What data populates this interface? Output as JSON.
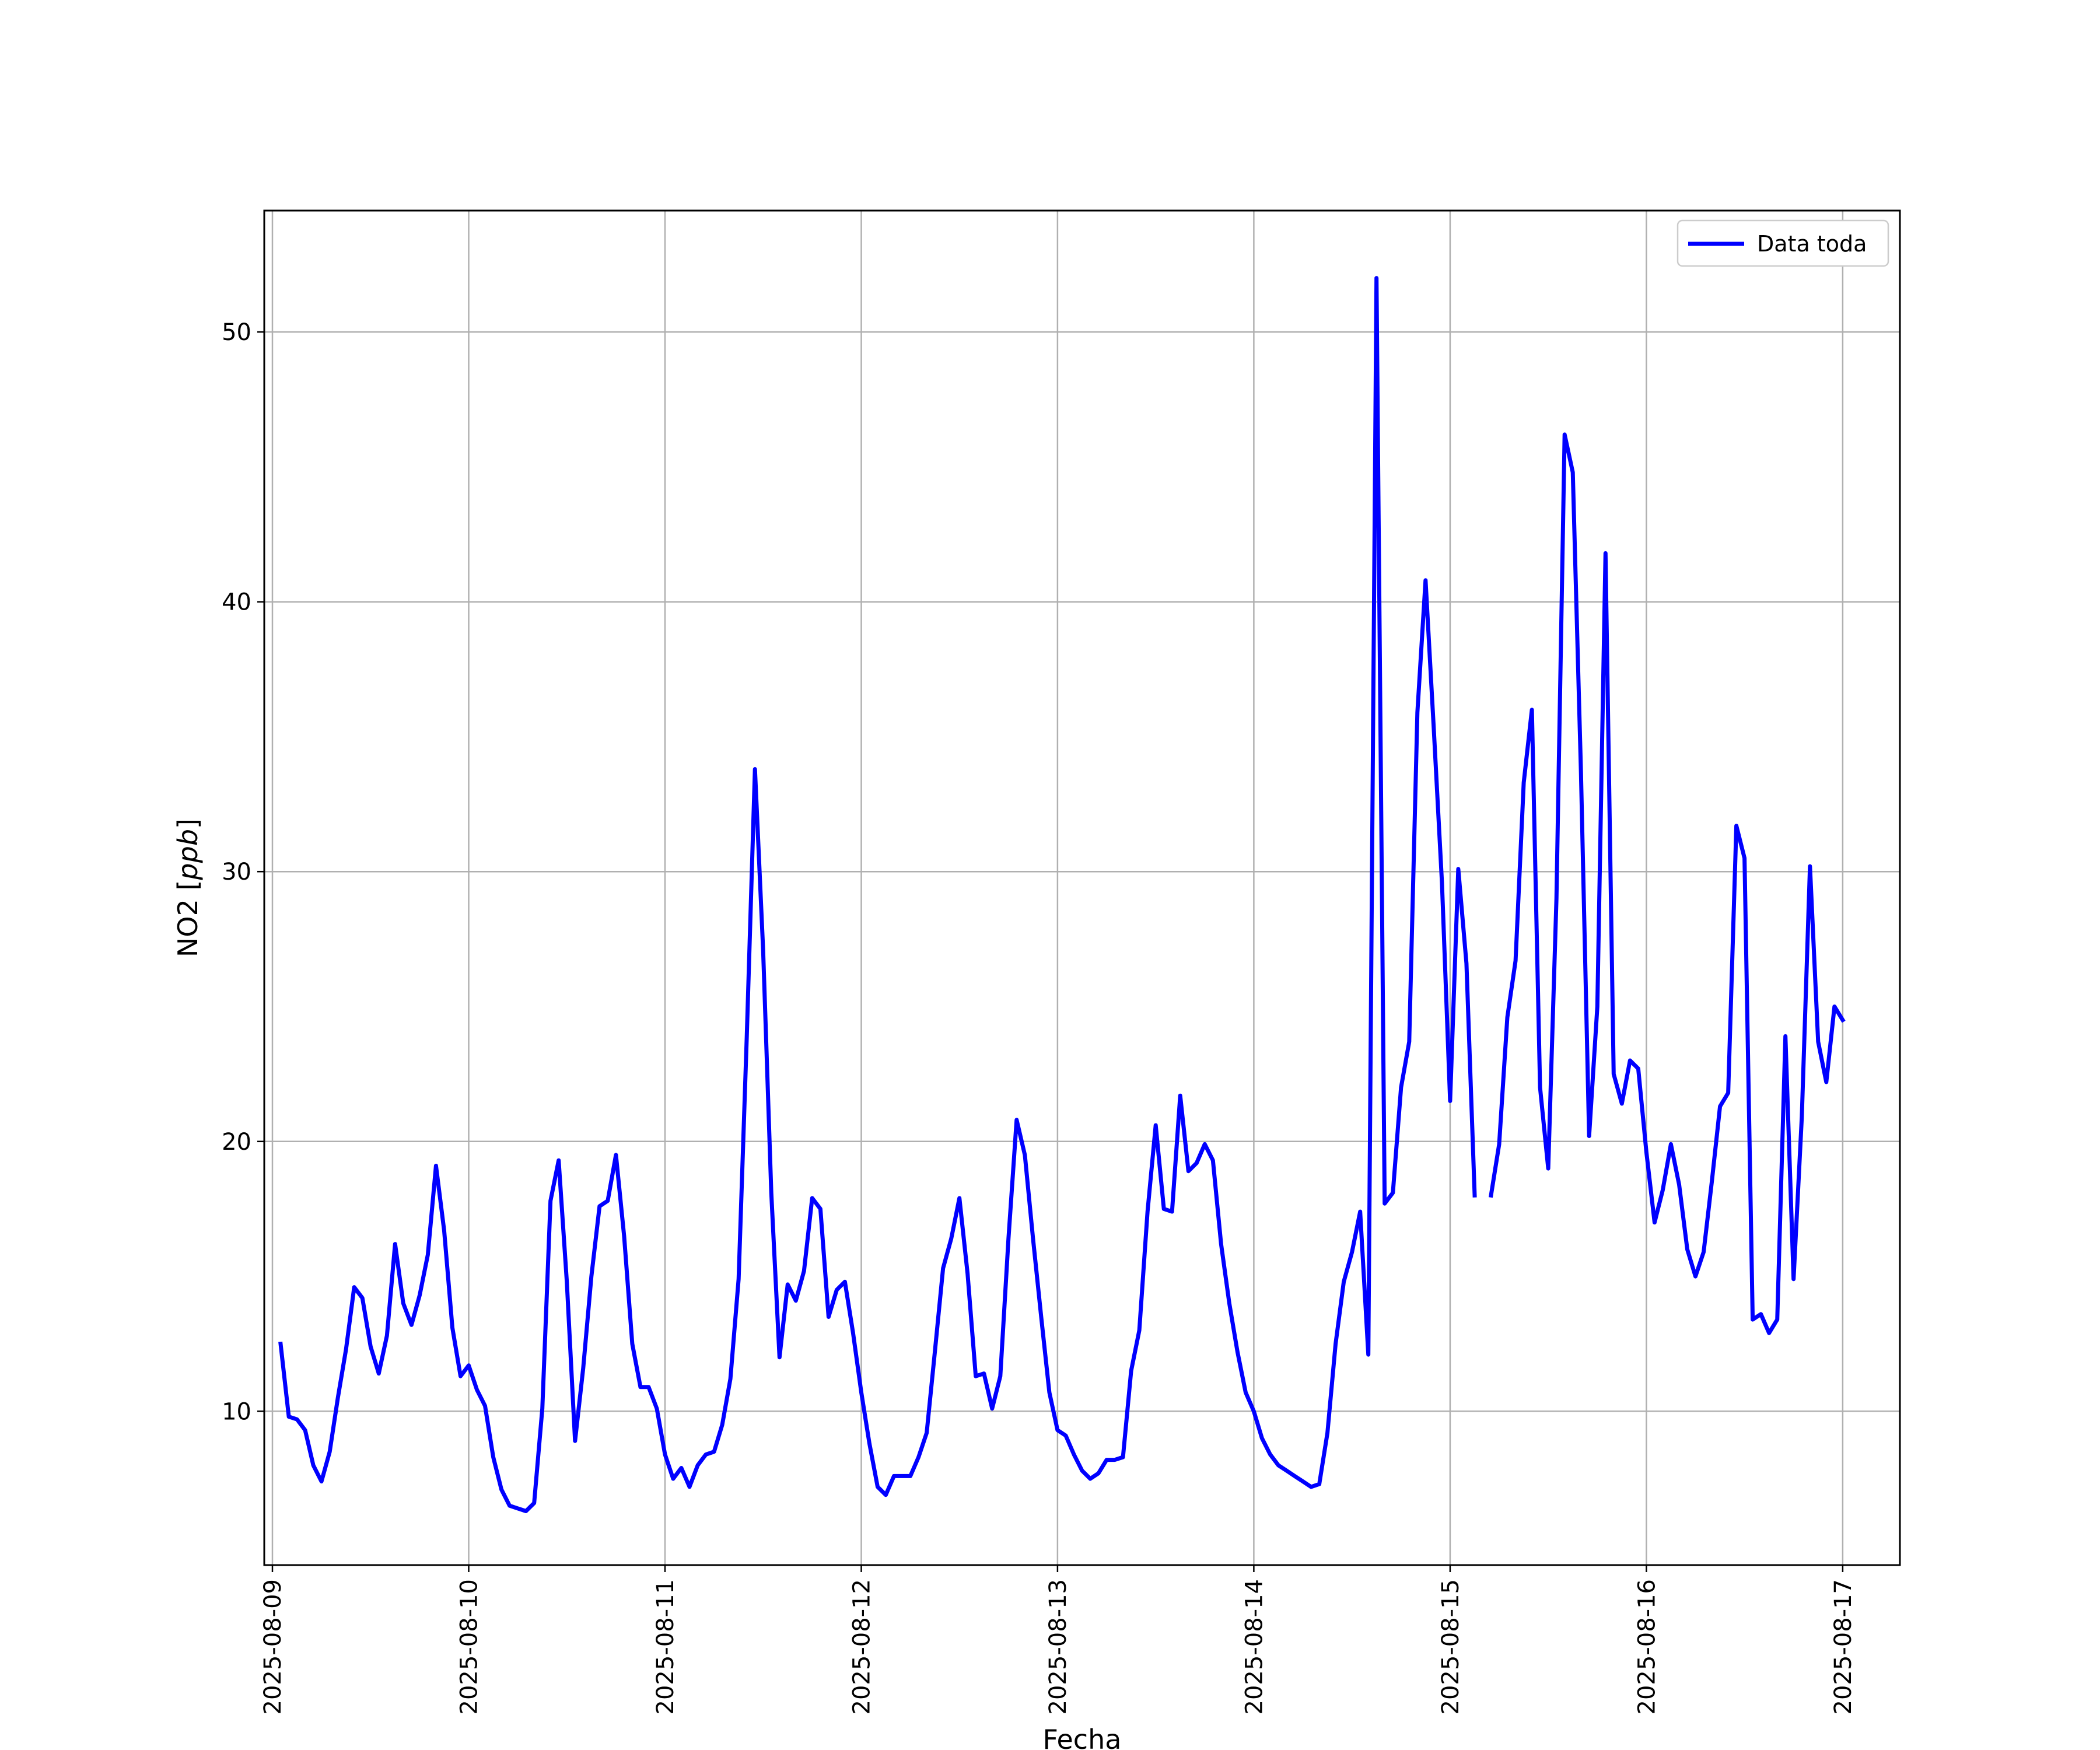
{
  "chart_data": {
    "type": "line",
    "title": "",
    "xlabel": "Fecha",
    "ylabel_main": "NO2 [",
    "ylabel_unit": "ppb",
    "ylabel_end": "]",
    "x_date_range": [
      "2025-08-08 23:00",
      "2025-08-17 07:00"
    ],
    "ylim": [
      4.3,
      54.5
    ],
    "yticks": [
      10,
      20,
      30,
      40,
      50
    ],
    "xticks": [
      "2025-08-09",
      "2025-08-10",
      "2025-08-11",
      "2025-08-12",
      "2025-08-13",
      "2025-08-14",
      "2025-08-15",
      "2025-08-16",
      "2025-08-17"
    ],
    "grid": true,
    "legend_position": "upper right",
    "series": [
      {
        "name": "Data toda",
        "color": "#0000ff",
        "points": [
          {
            "x": "2025-08-09 01:00",
            "y": 12.5
          },
          {
            "x": "2025-08-09 02:00",
            "y": 9.8
          },
          {
            "x": "2025-08-09 03:00",
            "y": 9.7
          },
          {
            "x": "2025-08-09 04:00",
            "y": 9.3
          },
          {
            "x": "2025-08-09 05:00",
            "y": 8.0
          },
          {
            "x": "2025-08-09 06:00",
            "y": 7.4
          },
          {
            "x": "2025-08-09 07:00",
            "y": 8.5
          },
          {
            "x": "2025-08-09 08:00",
            "y": 10.5
          },
          {
            "x": "2025-08-09 09:00",
            "y": 12.3
          },
          {
            "x": "2025-08-09 10:00",
            "y": 14.6
          },
          {
            "x": "2025-08-09 11:00",
            "y": 14.2
          },
          {
            "x": "2025-08-09 12:00",
            "y": 12.4
          },
          {
            "x": "2025-08-09 13:00",
            "y": 11.4
          },
          {
            "x": "2025-08-09 14:00",
            "y": 12.8
          },
          {
            "x": "2025-08-09 15:00",
            "y": 16.2
          },
          {
            "x": "2025-08-09 16:00",
            "y": 14.0
          },
          {
            "x": "2025-08-09 17:00",
            "y": 13.2
          },
          {
            "x": "2025-08-09 18:00",
            "y": 14.3
          },
          {
            "x": "2025-08-09 19:00",
            "y": 15.8
          },
          {
            "x": "2025-08-09 20:00",
            "y": 19.1
          },
          {
            "x": "2025-08-09 21:00",
            "y": 16.7
          },
          {
            "x": "2025-08-09 22:00",
            "y": 13.1
          },
          {
            "x": "2025-08-09 23:00",
            "y": 11.3
          },
          {
            "x": "2025-08-10 00:00",
            "y": 11.7
          },
          {
            "x": "2025-08-10 01:00",
            "y": 10.8
          },
          {
            "x": "2025-08-10 02:00",
            "y": 10.2
          },
          {
            "x": "2025-08-10 03:00",
            "y": 8.3
          },
          {
            "x": "2025-08-10 04:00",
            "y": 7.1
          },
          {
            "x": "2025-08-10 05:00",
            "y": 6.5
          },
          {
            "x": "2025-08-10 07:00",
            "y": 6.3
          },
          {
            "x": "2025-08-10 08:00",
            "y": 6.6
          },
          {
            "x": "2025-08-10 09:00",
            "y": 10.1
          },
          {
            "x": "2025-08-10 10:00",
            "y": 17.8
          },
          {
            "x": "2025-08-10 11:00",
            "y": 19.3
          },
          {
            "x": "2025-08-10 12:00",
            "y": 14.8
          },
          {
            "x": "2025-08-10 13:00",
            "y": 8.9
          },
          {
            "x": "2025-08-10 14:00",
            "y": 11.6
          },
          {
            "x": "2025-08-10 15:00",
            "y": 15.0
          },
          {
            "x": "2025-08-10 16:00",
            "y": 17.6
          },
          {
            "x": "2025-08-10 17:00",
            "y": 17.8
          },
          {
            "x": "2025-08-10 18:00",
            "y": 19.5
          },
          {
            "x": "2025-08-10 19:00",
            "y": 16.5
          },
          {
            "x": "2025-08-10 20:00",
            "y": 12.5
          },
          {
            "x": "2025-08-10 21:00",
            "y": 10.9
          },
          {
            "x": "2025-08-10 22:00",
            "y": 10.9
          },
          {
            "x": "2025-08-10 23:00",
            "y": 10.1
          },
          {
            "x": "2025-08-11 00:00",
            "y": 8.4
          },
          {
            "x": "2025-08-11 01:00",
            "y": 7.5
          },
          {
            "x": "2025-08-11 02:00",
            "y": 7.9
          },
          {
            "x": "2025-08-11 03:00",
            "y": 7.2
          },
          {
            "x": "2025-08-11 04:00",
            "y": 8.0
          },
          {
            "x": "2025-08-11 05:00",
            "y": 8.4
          },
          {
            "x": "2025-08-11 06:00",
            "y": 8.5
          },
          {
            "x": "2025-08-11 07:00",
            "y": 9.5
          },
          {
            "x": "2025-08-11 08:00",
            "y": 11.2
          },
          {
            "x": "2025-08-11 09:00",
            "y": 14.9
          },
          {
            "x": "2025-08-11 10:00",
            "y": 23.9
          },
          {
            "x": "2025-08-11 11:00",
            "y": 33.8
          },
          {
            "x": "2025-08-11 12:00",
            "y": 27.1
          },
          {
            "x": "2025-08-11 13:00",
            "y": 18.1
          },
          {
            "x": "2025-08-11 14:00",
            "y": 12.0
          },
          {
            "x": "2025-08-11 15:00",
            "y": 14.7
          },
          {
            "x": "2025-08-11 16:00",
            "y": 14.1
          },
          {
            "x": "2025-08-11 17:00",
            "y": 15.2
          },
          {
            "x": "2025-08-11 18:00",
            "y": 17.9
          },
          {
            "x": "2025-08-11 19:00",
            "y": 17.5
          },
          {
            "x": "2025-08-11 20:00",
            "y": 13.5
          },
          {
            "x": "2025-08-11 21:00",
            "y": 14.5
          },
          {
            "x": "2025-08-11 22:00",
            "y": 14.8
          },
          {
            "x": "2025-08-11 23:00",
            "y": 12.9
          },
          {
            "x": "2025-08-12 00:00",
            "y": 10.7
          },
          {
            "x": "2025-08-12 01:00",
            "y": 8.8
          },
          {
            "x": "2025-08-12 02:00",
            "y": 7.2
          },
          {
            "x": "2025-08-12 03:00",
            "y": 6.9
          },
          {
            "x": "2025-08-12 04:00",
            "y": 7.6
          },
          {
            "x": "2025-08-12 06:00",
            "y": 7.6
          },
          {
            "x": "2025-08-12 07:00",
            "y": 8.3
          },
          {
            "x": "2025-08-12 08:00",
            "y": 9.2
          },
          {
            "x": "2025-08-12 09:00",
            "y": 12.2
          },
          {
            "x": "2025-08-12 10:00",
            "y": 15.3
          },
          {
            "x": "2025-08-12 11:00",
            "y": 16.4
          },
          {
            "x": "2025-08-12 12:00",
            "y": 17.9
          },
          {
            "x": "2025-08-12 13:00",
            "y": 15.1
          },
          {
            "x": "2025-08-12 14:00",
            "y": 11.3
          },
          {
            "x": "2025-08-12 15:00",
            "y": 11.4
          },
          {
            "x": "2025-08-12 16:00",
            "y": 10.1
          },
          {
            "x": "2025-08-12 17:00",
            "y": 11.3
          },
          {
            "x": "2025-08-12 18:00",
            "y": 16.4
          },
          {
            "x": "2025-08-12 19:00",
            "y": 20.8
          },
          {
            "x": "2025-08-12 20:00",
            "y": 19.5
          },
          {
            "x": "2025-08-12 21:00",
            "y": 16.4
          },
          {
            "x": "2025-08-12 22:00",
            "y": 13.5
          },
          {
            "x": "2025-08-12 23:00",
            "y": 10.7
          },
          {
            "x": "2025-08-13 00:00",
            "y": 9.3
          },
          {
            "x": "2025-08-13 01:00",
            "y": 9.1
          },
          {
            "x": "2025-08-13 02:00",
            "y": 8.4
          },
          {
            "x": "2025-08-13 03:00",
            "y": 7.8
          },
          {
            "x": "2025-08-13 04:00",
            "y": 7.5
          },
          {
            "x": "2025-08-13 05:00",
            "y": 7.7
          },
          {
            "x": "2025-08-13 06:00",
            "y": 8.2
          },
          {
            "x": "2025-08-13 07:00",
            "y": 8.2
          },
          {
            "x": "2025-08-13 08:00",
            "y": 8.3
          },
          {
            "x": "2025-08-13 09:00",
            "y": 11.5
          },
          {
            "x": "2025-08-13 10:00",
            "y": 13.0
          },
          {
            "x": "2025-08-13 11:00",
            "y": 17.4
          },
          {
            "x": "2025-08-13 12:00",
            "y": 20.6
          },
          {
            "x": "2025-08-13 13:00",
            "y": 17.5
          },
          {
            "x": "2025-08-13 14:00",
            "y": 17.4
          },
          {
            "x": "2025-08-13 15:00",
            "y": 21.7
          },
          {
            "x": "2025-08-13 16:00",
            "y": 18.9
          },
          {
            "x": "2025-08-13 17:00",
            "y": 19.2
          },
          {
            "x": "2025-08-13 18:00",
            "y": 19.9
          },
          {
            "x": "2025-08-13 19:00",
            "y": 19.3
          },
          {
            "x": "2025-08-13 20:00",
            "y": 16.2
          },
          {
            "x": "2025-08-13 21:00",
            "y": 14.0
          },
          {
            "x": "2025-08-13 22:00",
            "y": 12.2
          },
          {
            "x": "2025-08-13 23:00",
            "y": 10.7
          },
          {
            "x": "2025-08-14 00:00",
            "y": 10.0
          },
          {
            "x": "2025-08-14 01:00",
            "y": 9.0
          },
          {
            "x": "2025-08-14 02:00",
            "y": 8.4
          },
          {
            "x": "2025-08-14 03:00",
            "y": 8.0
          },
          {
            "x": "2025-08-14 04:00",
            "y": 7.8
          },
          {
            "x": "2025-08-14 05:00",
            "y": 7.6
          },
          {
            "x": "2025-08-14 06:00",
            "y": 7.4
          },
          {
            "x": "2025-08-14 07:00",
            "y": 7.2
          },
          {
            "x": "2025-08-14 08:00",
            "y": 7.3
          },
          {
            "x": "2025-08-14 09:00",
            "y": 9.2
          },
          {
            "x": "2025-08-14 10:00",
            "y": 12.5
          },
          {
            "x": "2025-08-14 11:00",
            "y": 14.8
          },
          {
            "x": "2025-08-14 12:00",
            "y": 15.9
          },
          {
            "x": "2025-08-14 13:00",
            "y": 17.4
          },
          {
            "x": "2025-08-14 14:00",
            "y": 12.1
          },
          {
            "x": "2025-08-14 15:00",
            "y": 52.0
          },
          {
            "x": "2025-08-14 16:00",
            "y": 17.7
          },
          {
            "x": "2025-08-14 17:00",
            "y": 18.1
          },
          {
            "x": "2025-08-14 18:00",
            "y": 22.0
          },
          {
            "x": "2025-08-14 19:00",
            "y": 23.7
          },
          {
            "x": "2025-08-14 20:00",
            "y": 35.9
          },
          {
            "x": "2025-08-14 21:00",
            "y": 40.8
          },
          {
            "x": "2025-08-14 22:00",
            "y": 35.3
          },
          {
            "x": "2025-08-14 23:00",
            "y": 29.6
          },
          {
            "x": "2025-08-15 00:00",
            "y": 21.5
          },
          {
            "x": "2025-08-15 01:00",
            "y": 30.1
          },
          {
            "x": "2025-08-15 02:00",
            "y": 26.6
          },
          {
            "x": "2025-08-15 03:00",
            "y": 18.0
          },
          {
            "x": "2025-08-15 04:00",
            "y": null
          },
          {
            "x": "2025-08-15 05:00",
            "y": 18.0
          },
          {
            "x": "2025-08-15 06:00",
            "y": 19.9
          },
          {
            "x": "2025-08-15 07:00",
            "y": 24.6
          },
          {
            "x": "2025-08-15 08:00",
            "y": 26.7
          },
          {
            "x": "2025-08-15 09:00",
            "y": 33.3
          },
          {
            "x": "2025-08-15 10:00",
            "y": 36.0
          },
          {
            "x": "2025-08-15 11:00",
            "y": 22.0
          },
          {
            "x": "2025-08-15 12:00",
            "y": 19.0
          },
          {
            "x": "2025-08-15 13:00",
            "y": 29.0
          },
          {
            "x": "2025-08-15 14:00",
            "y": 46.2
          },
          {
            "x": "2025-08-15 15:00",
            "y": 44.8
          },
          {
            "x": "2025-08-15 16:00",
            "y": 33.7
          },
          {
            "x": "2025-08-15 17:00",
            "y": 20.2
          },
          {
            "x": "2025-08-15 18:00",
            "y": 25.0
          },
          {
            "x": "2025-08-15 19:00",
            "y": 41.8
          },
          {
            "x": "2025-08-15 20:00",
            "y": 22.5
          },
          {
            "x": "2025-08-15 21:00",
            "y": 21.4
          },
          {
            "x": "2025-08-15 22:00",
            "y": 23.0
          },
          {
            "x": "2025-08-15 23:00",
            "y": 22.7
          },
          {
            "x": "2025-08-16 00:00",
            "y": 19.6
          },
          {
            "x": "2025-08-16 01:00",
            "y": 17.0
          },
          {
            "x": "2025-08-16 02:00",
            "y": 18.2
          },
          {
            "x": "2025-08-16 03:00",
            "y": 19.9
          },
          {
            "x": "2025-08-16 04:00",
            "y": 18.4
          },
          {
            "x": "2025-08-16 05:00",
            "y": 16.0
          },
          {
            "x": "2025-08-16 06:00",
            "y": 15.0
          },
          {
            "x": "2025-08-16 07:00",
            "y": 15.9
          },
          {
            "x": "2025-08-16 08:00",
            "y": 18.5
          },
          {
            "x": "2025-08-16 09:00",
            "y": 21.3
          },
          {
            "x": "2025-08-16 10:00",
            "y": 21.8
          },
          {
            "x": "2025-08-16 11:00",
            "y": 31.7
          },
          {
            "x": "2025-08-16 12:00",
            "y": 30.5
          },
          {
            "x": "2025-08-16 13:00",
            "y": 13.4
          },
          {
            "x": "2025-08-16 14:00",
            "y": 13.6
          },
          {
            "x": "2025-08-16 15:00",
            "y": 12.9
          },
          {
            "x": "2025-08-16 16:00",
            "y": 13.4
          },
          {
            "x": "2025-08-16 17:00",
            "y": 23.9
          },
          {
            "x": "2025-08-16 18:00",
            "y": 14.9
          },
          {
            "x": "2025-08-16 19:00",
            "y": 20.9
          },
          {
            "x": "2025-08-16 20:00",
            "y": 30.2
          },
          {
            "x": "2025-08-16 21:00",
            "y": 23.7
          },
          {
            "x": "2025-08-16 22:00",
            "y": 22.2
          },
          {
            "x": "2025-08-16 23:00",
            "y": 25.0
          },
          {
            "x": "2025-08-17 00:00",
            "y": 24.5
          }
        ]
      }
    ]
  }
}
